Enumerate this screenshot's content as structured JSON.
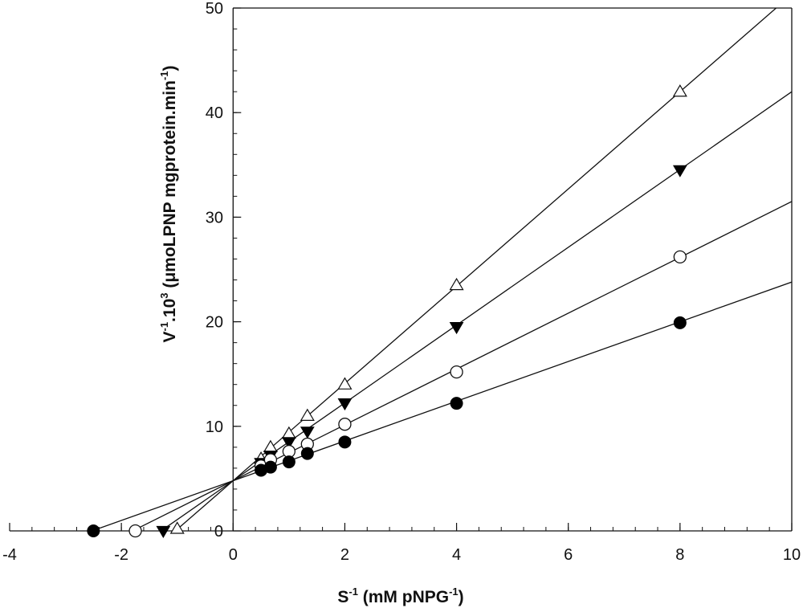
{
  "chart_data": {
    "type": "line",
    "title": "",
    "xlabel": {
      "parts": [
        {
          "text": "S",
          "sup": false
        },
        {
          "text": "-1",
          "sup": true
        },
        {
          "text": " (mM pNPG",
          "sup": false
        },
        {
          "text": "-1",
          "sup": true
        },
        {
          "text": ")",
          "sup": false
        }
      ]
    },
    "ylabel": {
      "parts": [
        {
          "text": "V",
          "sup": false
        },
        {
          "text": "-1",
          "sup": true
        },
        {
          "text": ".10",
          "sup": false
        },
        {
          "text": "3",
          "sup": true
        },
        {
          "text": "  (μmoLPNP mgprotein.min",
          "sup": false
        },
        {
          "text": "-1",
          "sup": true
        },
        {
          "text": ")",
          "sup": false
        }
      ]
    },
    "xlim": [
      -4,
      10
    ],
    "ylim": [
      0,
      50
    ],
    "x_ticks": [
      -4,
      -2,
      0,
      2,
      4,
      6,
      8,
      10
    ],
    "y_ticks": [
      0,
      10,
      20,
      30,
      40,
      50
    ],
    "x_tick_labels": [
      "-4",
      "-2",
      "0",
      "2",
      "4",
      "6",
      "8",
      "10"
    ],
    "y_tick_labels": [
      "0",
      "10",
      "20",
      "30",
      "40",
      "50"
    ],
    "x_minor_step": 0.4,
    "y_minor_step": 2,
    "grid": false,
    "legend": "none",
    "series": [
      {
        "marker": "open-triangle",
        "points": [
          [
            -1.0,
            0.2
          ],
          [
            0.5,
            6.9
          ],
          [
            0.67,
            8.0
          ],
          [
            1.0,
            9.3
          ],
          [
            1.33,
            11.0
          ],
          [
            2.0,
            14.0
          ],
          [
            4.0,
            23.5
          ],
          [
            8.0,
            42.0
          ]
        ],
        "fit": {
          "slope": 4.65,
          "intercept": 4.8
        }
      },
      {
        "marker": "filled-triangle-down",
        "points": [
          [
            -1.25,
            0.0
          ],
          [
            0.5,
            6.5
          ],
          [
            0.67,
            7.2
          ],
          [
            1.0,
            8.5
          ],
          [
            1.33,
            9.5
          ],
          [
            2.0,
            12.2
          ],
          [
            4.0,
            19.5
          ],
          [
            8.0,
            34.5
          ]
        ],
        "fit": {
          "slope": 3.72,
          "intercept": 4.8
        }
      },
      {
        "marker": "open-circle",
        "points": [
          [
            -1.75,
            0.0
          ],
          [
            0.5,
            6.2
          ],
          [
            0.67,
            6.8
          ],
          [
            1.0,
            7.6
          ],
          [
            1.33,
            8.3
          ],
          [
            2.0,
            10.2
          ],
          [
            4.0,
            15.2
          ],
          [
            8.0,
            26.2
          ]
        ],
        "fit": {
          "slope": 2.67,
          "intercept": 4.8
        }
      },
      {
        "marker": "filled-circle",
        "points": [
          [
            -2.5,
            0.0
          ],
          [
            0.5,
            5.8
          ],
          [
            0.67,
            6.1
          ],
          [
            1.0,
            6.6
          ],
          [
            1.33,
            7.4
          ],
          [
            2.0,
            8.5
          ],
          [
            4.0,
            12.2
          ],
          [
            8.0,
            19.9
          ]
        ],
        "fit": {
          "slope": 1.9,
          "intercept": 4.8
        }
      }
    ]
  }
}
